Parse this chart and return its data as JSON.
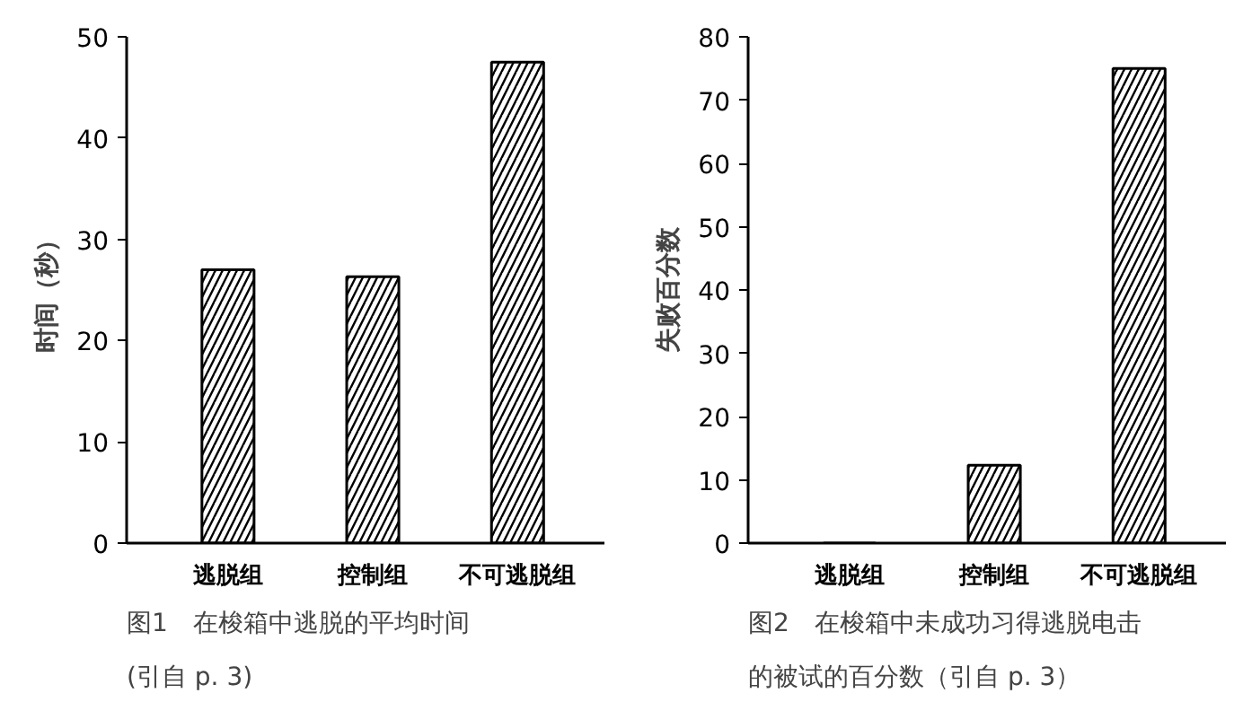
{
  "chart_data": [
    {
      "type": "bar",
      "categories": [
        "逃脱组",
        "控制组",
        "不可逃脱组"
      ],
      "values": [
        27,
        26.3,
        47.5
      ],
      "color": "#000000",
      "ylabel": "时间（秒）",
      "ylim": [
        0,
        50
      ],
      "yticks": [
        0,
        10,
        20,
        30,
        40,
        50
      ],
      "annotations": [
        "图1　在梭箱中逃脱的平均时间",
        "(引自 p. 3)"
      ]
    },
    {
      "type": "bar",
      "categories": [
        "逃脱组",
        "控制组",
        "不可逃脱组"
      ],
      "values": [
        0,
        12.3,
        75
      ],
      "color": "#000000",
      "ylabel": "失败百分数",
      "ylim": [
        0,
        80
      ],
      "yticks": [
        0,
        10,
        20,
        30,
        40,
        50,
        60,
        70,
        80
      ],
      "annotations": [
        "图2　在梭箱中未成功习得逃脱电击",
        "的被试的百分数（引自 p. 3）"
      ]
    }
  ]
}
